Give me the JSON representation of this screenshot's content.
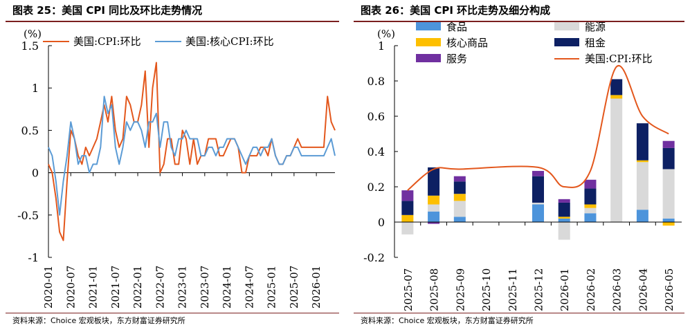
{
  "left": {
    "title": "图表 25：美国 CPI 同比及环比走势情况",
    "source": "资料来源：Choice 宏观板块，东方财富证券研究所",
    "unit": "(%)",
    "colors": {
      "headline": "#e3571c",
      "core": "#5b9bd5"
    },
    "chart_data": {
      "type": "line",
      "ylim": [
        -1,
        1.5
      ],
      "yticks": [
        1.5,
        1,
        0.5,
        0,
        -0.5,
        -1
      ],
      "ytick_labels": [
        "1.5",
        "1",
        "0.5",
        "0",
        "-0.5",
        "-1"
      ],
      "xlim": [
        0,
        77
      ],
      "xtick_positions": [
        0,
        6,
        12,
        18,
        24,
        30,
        36,
        42,
        48,
        54,
        60,
        66,
        72
      ],
      "xtick_labels": [
        "2020-01",
        "2020-07",
        "2021-01",
        "2021-07",
        "2022-01",
        "2022-07",
        "2023-01",
        "2023-07",
        "2024-01",
        "2024-07",
        "2025-01",
        "2025-07",
        "2026-01"
      ],
      "legend_position": "top",
      "series": [
        {
          "name": "美国:CPI:环比",
          "values": [
            0.1,
            0.0,
            -0.3,
            -0.7,
            -0.8,
            -0.1,
            0.5,
            0.4,
            0.2,
            0.1,
            0.3,
            0.2,
            0.3,
            0.4,
            0.6,
            0.8,
            0.6,
            0.9,
            0.5,
            0.3,
            0.4,
            0.9,
            0.8,
            0.6,
            0.6,
            0.8,
            1.2,
            0.3,
            1.0,
            1.3,
            0.0,
            0.1,
            0.4,
            0.4,
            0.1,
            0.1,
            0.5,
            0.4,
            0.1,
            0.4,
            0.1,
            0.2,
            0.2,
            0.4,
            0.4,
            0.4,
            0.2,
            0.2,
            0.3,
            0.4,
            0.4,
            0.3,
            0.0,
            0.0,
            0.2,
            0.2,
            0.2,
            0.3,
            0.3,
            0.2,
            0.4,
            0.2,
            0.1,
            0.1,
            0.2,
            0.2,
            0.3,
            0.4,
            0.3,
            0.3,
            0.3,
            0.3,
            0.3,
            0.3,
            0.3,
            0.9,
            0.6,
            0.5
          ]
        },
        {
          "name": "美国:核心CPI:环比",
          "values": [
            0.3,
            0.2,
            -0.1,
            -0.5,
            -0.1,
            0.2,
            0.6,
            0.4,
            0.1,
            0.2,
            0.2,
            0.0,
            0.1,
            0.1,
            0.3,
            0.9,
            0.7,
            0.8,
            0.3,
            0.1,
            0.3,
            0.6,
            0.5,
            0.6,
            0.6,
            0.5,
            0.3,
            0.6,
            0.6,
            0.7,
            0.3,
            0.6,
            0.6,
            0.3,
            0.2,
            0.4,
            0.4,
            0.5,
            0.4,
            0.4,
            0.4,
            0.2,
            0.2,
            0.3,
            0.3,
            0.2,
            0.3,
            0.3,
            0.4,
            0.4,
            0.4,
            0.3,
            0.2,
            0.1,
            0.2,
            0.3,
            0.3,
            0.2,
            0.3,
            0.3,
            0.4,
            0.2,
            0.1,
            0.1,
            0.2,
            0.2,
            0.3,
            0.3,
            0.2,
            0.2,
            0.2,
            0.2,
            0.2,
            0.2,
            0.2,
            0.3,
            0.4,
            0.2
          ]
        }
      ]
    }
  },
  "right": {
    "title": "图表 26：美国 CPI 环比走势及细分构成",
    "source": "资料来源：Choice 宏观板块，东方财富证券研究所",
    "unit": "(%)",
    "colors": {
      "food": "#4d94db",
      "energy": "#d9d9d9",
      "core_goods": "#fdbf00",
      "rent": "#0d2063",
      "services": "#7030a0",
      "cpi": "#e3571c"
    },
    "chart_data": {
      "type": "bar",
      "stacked": true,
      "ylim": [
        -0.2,
        1
      ],
      "yticks": [
        1,
        0.8,
        0.6,
        0.4,
        0.2,
        0,
        -0.2
      ],
      "ytick_labels": [
        "1",
        "0.8",
        "0.6",
        "0.4",
        "0.2",
        "0",
        "-0.2"
      ],
      "categories": [
        "2025-07",
        "2025-08",
        "2025-09",
        "2025-10",
        "2025-11",
        "2025-12",
        "2026-01",
        "2026-02",
        "2026-03",
        "2026-04",
        "2026-05"
      ],
      "legend_position": "top",
      "series": [
        {
          "name": "食品",
          "key": "food",
          "values": [
            0.0,
            0.06,
            0.03,
            null,
            null,
            0.1,
            0.02,
            0.05,
            0.0,
            0.07,
            0.02
          ]
        },
        {
          "name": "能源",
          "key": "energy",
          "values": [
            -0.07,
            0.04,
            0.09,
            null,
            null,
            0.01,
            -0.1,
            0.03,
            0.7,
            0.27,
            0.28
          ]
        },
        {
          "name": "核心商品",
          "key": "core_goods",
          "values": [
            0.04,
            0.05,
            0.04,
            null,
            null,
            0.0,
            0.01,
            0.02,
            0.02,
            0.01,
            -0.02
          ]
        },
        {
          "name": "租金",
          "key": "rent",
          "values": [
            0.08,
            0.16,
            0.07,
            null,
            null,
            0.15,
            0.08,
            0.09,
            0.09,
            0.21,
            0.12
          ]
        },
        {
          "name": "服务",
          "key": "services",
          "values": [
            0.06,
            -0.01,
            0.03,
            null,
            null,
            0.03,
            0.02,
            0.05,
            0.0,
            0.0,
            0.04
          ]
        }
      ],
      "line": {
        "name": "美国:CPI:环比",
        "key": "cpi",
        "values": [
          0.18,
          0.3,
          0.3,
          null,
          null,
          0.31,
          0.2,
          0.29,
          0.88,
          0.6,
          0.5
        ]
      }
    }
  }
}
